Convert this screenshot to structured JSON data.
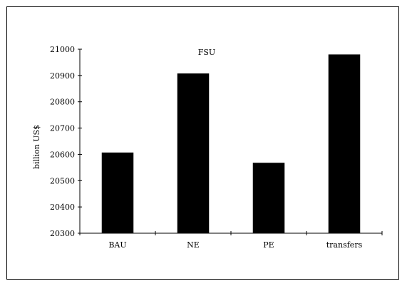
{
  "chart_data": {
    "type": "bar",
    "title": "FSU",
    "xlabel": "",
    "ylabel": "billion US$",
    "categories": [
      "BAU",
      "NE",
      "PE",
      "transfers"
    ],
    "values": [
      20607,
      20908,
      20568,
      20980
    ],
    "ylim": [
      20300,
      21000
    ],
    "yticks": [
      20300,
      20400,
      20500,
      20600,
      20700,
      20800,
      20900,
      21000
    ],
    "grid": false,
    "colors": {
      "bar": "#000000",
      "axis": "#000000"
    }
  }
}
